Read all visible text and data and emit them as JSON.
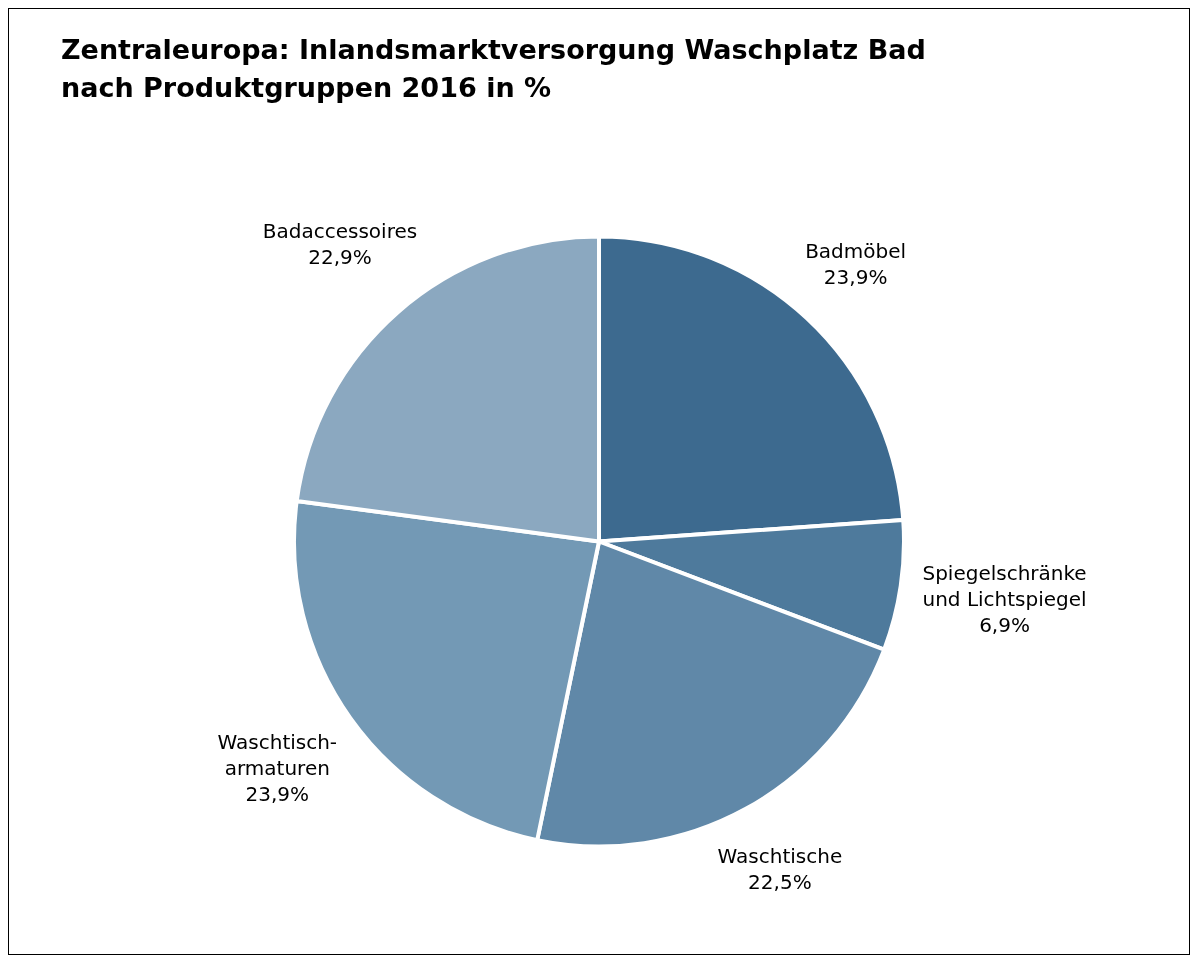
{
  "chart_data": {
    "type": "pie",
    "title": "Zentraleuropa: Inlandsmarktversorgung Waschplatz Bad nach Produktgruppen 2016 in %",
    "categories": [
      "Badmöbel",
      "Spiegelschränke und Lichtspiegel",
      "Waschtische",
      "Waschtisch-armaturen",
      "Badaccessoires"
    ],
    "values": [
      23.9,
      6.9,
      22.5,
      23.9,
      22.9
    ],
    "value_labels": [
      "23,9%",
      "6,9%",
      "22,5%",
      "23,9%",
      "22,9%"
    ],
    "colors": [
      "#3d6a8f",
      "#4e7a9c",
      "#6088a8",
      "#7399b5",
      "#8ba8c0"
    ],
    "legend": false
  }
}
